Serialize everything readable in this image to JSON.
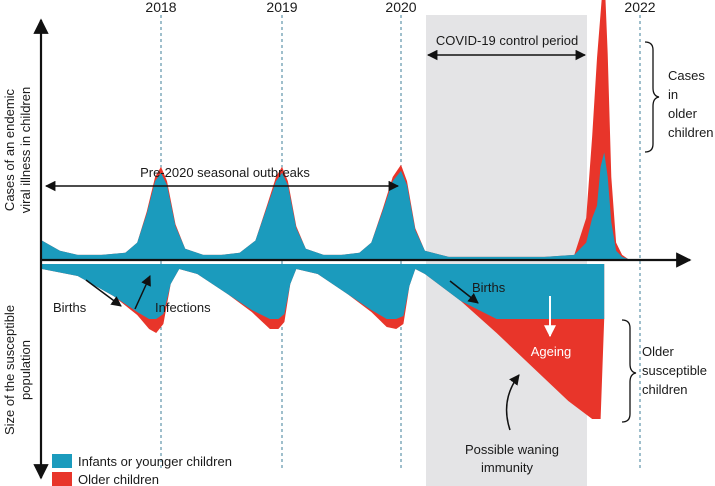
{
  "chart_data": {
    "type": "area",
    "title": "",
    "y_axis_top_label": [
      "Cases of an endemic",
      "viral illness in children"
    ],
    "y_axis_bottom_label": [
      "Size of the susceptible",
      "population"
    ],
    "years": [
      "2018",
      "2019",
      "2020",
      "2022"
    ],
    "covid_period_label": "COVID-19 control period",
    "pre2020_label": "Pre-2020 seasonal outbreaks",
    "annotations": {
      "births_left": "Births",
      "infections": "Infections",
      "births_right": "Births",
      "ageing": "Ageing",
      "waning": [
        "Possible waning",
        "immunity"
      ],
      "cases_older": [
        "Cases",
        "in",
        "older",
        "children"
      ],
      "older_susceptible": [
        "Older",
        "susceptible",
        "children"
      ]
    },
    "legend": [
      {
        "name": "Infants or younger children",
        "color": "#1b9bbd"
      },
      {
        "name": "Older children",
        "color": "#e8352a"
      }
    ],
    "colors": {
      "infants": "#1b9bbd",
      "older": "#e8352a",
      "covid_band": "#e4e4e6",
      "axis": "#111111",
      "dashed": "#3f7f99"
    },
    "units": "relative (0–100)",
    "time_range": [
      2017.0,
      2022.9
    ],
    "covid_period": [
      2020.2,
      2021.7
    ],
    "cases_series": {
      "x": [
        2017.0,
        2017.15,
        2017.3,
        2017.5,
        2017.7,
        2017.8,
        2017.88,
        2017.95,
        2018.0,
        2018.05,
        2018.12,
        2018.2,
        2018.35,
        2018.5,
        2018.65,
        2018.78,
        2018.88,
        2018.95,
        2019.0,
        2019.05,
        2019.12,
        2019.2,
        2019.35,
        2019.5,
        2019.65,
        2019.75,
        2019.85,
        2019.93,
        2020.0,
        2020.05,
        2020.12,
        2020.2,
        2020.4,
        2020.8,
        2021.2,
        2021.45,
        2021.55,
        2021.6,
        2021.64,
        2021.67,
        2021.7,
        2021.73,
        2021.76,
        2021.8,
        2021.85,
        2021.9,
        2022.0,
        2022.9
      ],
      "infants": [
        9,
        4,
        2,
        2,
        3,
        8,
        22,
        38,
        42,
        36,
        16,
        5,
        2,
        2,
        3,
        9,
        26,
        38,
        42,
        36,
        15,
        5,
        2,
        2,
        3,
        8,
        24,
        38,
        43,
        36,
        14,
        4,
        1,
        1,
        1,
        2,
        8,
        20,
        26,
        45,
        52,
        40,
        18,
        4,
        1,
        0,
        0,
        0
      ],
      "older": [
        0,
        0,
        0,
        0,
        0,
        0,
        1,
        2,
        3,
        2,
        1,
        0,
        0,
        0,
        0,
        0,
        1,
        2,
        3,
        2,
        1,
        0,
        0,
        0,
        0,
        0,
        1,
        2,
        3,
        2,
        1,
        0,
        0,
        0,
        0,
        0,
        12,
        40,
        72,
        75,
        90,
        60,
        22,
        4,
        1,
        0,
        0,
        0
      ]
    },
    "susceptible_series": {
      "x": [
        2017.0,
        2017.3,
        2017.6,
        2017.8,
        2017.9,
        2017.96,
        2018.02,
        2018.08,
        2018.15,
        2018.3,
        2018.55,
        2018.75,
        2018.9,
        2018.97,
        2019.02,
        2019.07,
        2019.12,
        2019.3,
        2019.55,
        2019.75,
        2019.88,
        2019.96,
        2020.02,
        2020.07,
        2020.12,
        2020.2,
        2020.5,
        2020.8,
        2021.1,
        2021.4,
        2021.6,
        2021.67,
        2021.7
      ],
      "infants": [
        5,
        12,
        32,
        48,
        55,
        55,
        50,
        20,
        5,
        10,
        30,
        46,
        55,
        55,
        50,
        20,
        5,
        10,
        30,
        46,
        55,
        55,
        52,
        22,
        5,
        10,
        37,
        55,
        55,
        55,
        55,
        55,
        55
      ],
      "older": [
        0,
        0,
        0,
        3,
        10,
        14,
        10,
        0,
        0,
        0,
        0,
        2,
        10,
        10,
        8,
        0,
        0,
        0,
        0,
        2,
        8,
        10,
        8,
        0,
        0,
        0,
        0,
        14,
        48,
        82,
        100,
        100,
        0
      ]
    }
  }
}
